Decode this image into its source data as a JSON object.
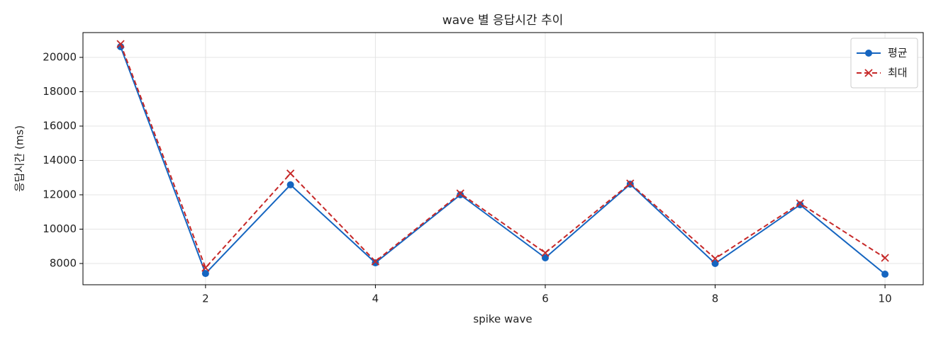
{
  "chart_data": {
    "type": "line",
    "title": "wave 별 응답시간 추이",
    "x_label": "spike wave",
    "y_label": "응답시간 (ms)",
    "x": [
      1,
      2,
      3,
      4,
      5,
      6,
      7,
      8,
      9,
      10
    ],
    "series": [
      {
        "name": "평균",
        "color": "#1565c0",
        "marker": "circle",
        "dash": false,
        "values": [
          20620,
          7420,
          12580,
          8040,
          12000,
          8330,
          12620,
          8000,
          11420,
          7380
        ]
      },
      {
        "name": "최대",
        "color": "#c62828",
        "marker": "x",
        "dash": true,
        "values": [
          20780,
          7750,
          13240,
          8120,
          12080,
          8620,
          12660,
          8290,
          11500,
          8330
        ]
      }
    ],
    "xlim": [
      0.557,
      10.45
    ],
    "xticks": [
      2,
      4,
      6,
      8,
      10
    ],
    "ylim": [
      6763,
      21443
    ],
    "yticks": [
      8000,
      10000,
      12000,
      14000,
      16000,
      18000,
      20000
    ],
    "grid": true,
    "legend": "upper right"
  }
}
